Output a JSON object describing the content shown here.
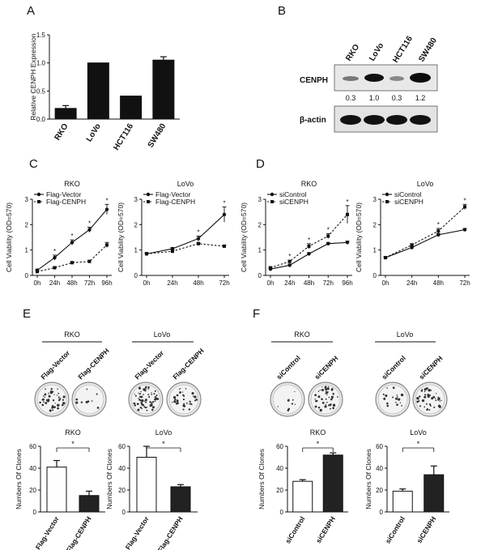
{
  "figure": {
    "panel_labels": [
      "A",
      "B",
      "C",
      "D",
      "E",
      "F"
    ]
  },
  "chart_data": [
    {
      "id": "A",
      "type": "bar",
      "title": "",
      "ylabel": "Relative CENPH Expression",
      "categories": [
        "RKO",
        "LoVo",
        "HCT116",
        "SW480"
      ],
      "values": [
        0.19,
        1.0,
        0.41,
        1.05
      ],
      "errors": [
        0.05,
        0,
        0,
        0.06
      ],
      "ylim": [
        0,
        1.5
      ],
      "yticks": [
        "0.0",
        "0.5",
        "1.0",
        "1.5"
      ]
    },
    {
      "id": "B",
      "type": "table",
      "title": "",
      "columns": [
        "RKO",
        "LoVo",
        "HCT116",
        "SW480"
      ],
      "rows": [
        {
          "label": "CENPH",
          "values": [
            "0.3",
            "1.0",
            "0.3",
            "1.2"
          ]
        },
        {
          "label": "β-actin",
          "values": []
        }
      ]
    },
    {
      "id": "C-RKO",
      "type": "line",
      "title": "RKO",
      "ylabel": "Cell Viability (OD=570)",
      "x": [
        "0h",
        "24h",
        "48h",
        "72h",
        "96h"
      ],
      "ylim": [
        0,
        3
      ],
      "yticks": [
        "0",
        "1",
        "2",
        "3"
      ],
      "series": [
        {
          "name": "Flag-Vector",
          "values": [
            0.2,
            0.7,
            1.3,
            1.8,
            2.6
          ],
          "errors": [
            0.05,
            0.1,
            0.1,
            0.1,
            0.2
          ],
          "style": "solid-circle"
        },
        {
          "name": "Flag-CENPH",
          "values": [
            0.15,
            0.3,
            0.5,
            0.55,
            1.2
          ],
          "errors": [
            0.03,
            0.05,
            0.05,
            0.05,
            0.1
          ],
          "style": "dashed-square"
        }
      ],
      "annotations": [
        "*",
        "*",
        "*",
        "*"
      ]
    },
    {
      "id": "C-LoVo",
      "type": "line",
      "title": "LoVo",
      "ylabel": "Cell Viability (OD=570)",
      "x": [
        "0h",
        "24h",
        "48h",
        "72h"
      ],
      "ylim": [
        0,
        3
      ],
      "yticks": [
        "0",
        "1",
        "2",
        "3"
      ],
      "series": [
        {
          "name": "Flag-Vector",
          "values": [
            0.85,
            1.05,
            1.45,
            2.4
          ],
          "errors": [
            0.05,
            0.05,
            0.1,
            0.3
          ],
          "style": "solid-circle"
        },
        {
          "name": "Flag-CENPH",
          "values": [
            0.85,
            0.95,
            1.25,
            1.15
          ],
          "errors": [
            0.05,
            0.05,
            0.05,
            0.05
          ],
          "style": "dashed-square"
        }
      ],
      "annotations": [
        "*",
        "*"
      ]
    },
    {
      "id": "D-RKO",
      "type": "line",
      "title": "RKO",
      "ylabel": "Cell Viability (OD=570)",
      "x": [
        "0h",
        "24h",
        "48h",
        "72h",
        "96h"
      ],
      "ylim": [
        0,
        3
      ],
      "yticks": [
        "0",
        "1",
        "2",
        "3"
      ],
      "series": [
        {
          "name": "siControl",
          "values": [
            0.25,
            0.4,
            0.85,
            1.25,
            1.3
          ],
          "errors": [
            0.03,
            0.05,
            0.05,
            0.05,
            0.05
          ],
          "style": "solid-circle"
        },
        {
          "name": "siCENPH",
          "values": [
            0.3,
            0.55,
            1.15,
            1.55,
            2.4
          ],
          "errors": [
            0.03,
            0.05,
            0.1,
            0.1,
            0.35
          ],
          "style": "dashed-square"
        }
      ],
      "annotations": [
        "*",
        "*",
        "*",
        "*"
      ]
    },
    {
      "id": "D-LoVo",
      "type": "line",
      "title": "LoVo",
      "ylabel": "Cell Viability (OD=570)",
      "x": [
        "0h",
        "24h",
        "48h",
        "72h"
      ],
      "ylim": [
        0,
        3
      ],
      "yticks": [
        "0",
        "1",
        "2",
        "3"
      ],
      "series": [
        {
          "name": "siControl",
          "values": [
            0.7,
            1.1,
            1.6,
            1.8
          ],
          "errors": [
            0.03,
            0.05,
            0.05,
            0.05
          ],
          "style": "solid-circle"
        },
        {
          "name": "siCENPH",
          "values": [
            0.7,
            1.2,
            1.75,
            2.7
          ],
          "errors": [
            0.03,
            0.05,
            0.1,
            0.1
          ],
          "style": "dashed-square"
        }
      ],
      "annotations": [
        "*",
        "*"
      ]
    },
    {
      "id": "E-RKO",
      "type": "bar",
      "title": "RKO",
      "ylabel": "Numbers Of Clones",
      "categories": [
        "Flag-Vector",
        "Flag-CENPH"
      ],
      "values": [
        41,
        15
      ],
      "errors": [
        6,
        4
      ],
      "fills": [
        "#ffffff",
        "#222222"
      ],
      "ylim": [
        0,
        60
      ],
      "yticks": [
        "0",
        "20",
        "40",
        "60"
      ],
      "significance": "*"
    },
    {
      "id": "E-LoVo",
      "type": "bar",
      "title": "LoVo",
      "ylabel": "Numbers Of Clones",
      "categories": [
        "Flag-Vector",
        "Flag-CENPH"
      ],
      "values": [
        50,
        23
      ],
      "errors": [
        10,
        2
      ],
      "fills": [
        "#ffffff",
        "#222222"
      ],
      "ylim": [
        0,
        60
      ],
      "yticks": [
        "0",
        "20",
        "40",
        "60"
      ],
      "significance": "*"
    },
    {
      "id": "F-RKO",
      "type": "bar",
      "title": "RKO",
      "ylabel": "Numbers Of Clones",
      "categories": [
        "siControl",
        "siCENPH"
      ],
      "values": [
        28,
        52
      ],
      "errors": [
        1.5,
        2
      ],
      "fills": [
        "#ffffff",
        "#222222"
      ],
      "ylim": [
        0,
        60
      ],
      "yticks": [
        "0",
        "20",
        "40",
        "60"
      ],
      "significance": "*"
    },
    {
      "id": "F-LoVo",
      "type": "bar",
      "title": "LoVo",
      "ylabel": "Numbers Of Clones",
      "categories": [
        "siControl",
        "siCENPH"
      ],
      "values": [
        19,
        34
      ],
      "errors": [
        2,
        8
      ],
      "fills": [
        "#ffffff",
        "#222222"
      ],
      "ylim": [
        0,
        60
      ],
      "yticks": [
        "0",
        "20",
        "40",
        "60"
      ],
      "significance": "*"
    }
  ],
  "plates": {
    "E": {
      "groups": [
        {
          "title": "RKO",
          "labels": [
            "Flag-Vector",
            "Flag-CENPH"
          ],
          "colonies": [
            0.8,
            0.15
          ]
        },
        {
          "title": "LoVo",
          "labels": [
            "Flag-Vector",
            "Flag-CENPH"
          ],
          "colonies": [
            1.0,
            0.55
          ]
        }
      ]
    },
    "F": {
      "groups": [
        {
          "title": "RKO",
          "labels": [
            "siControl",
            "siCENPH"
          ],
          "colonies": [
            0.15,
            0.8
          ]
        },
        {
          "title": "LoVo",
          "labels": [
            "siControl",
            "siCENPH"
          ],
          "colonies": [
            0.3,
            0.7
          ]
        }
      ]
    }
  }
}
